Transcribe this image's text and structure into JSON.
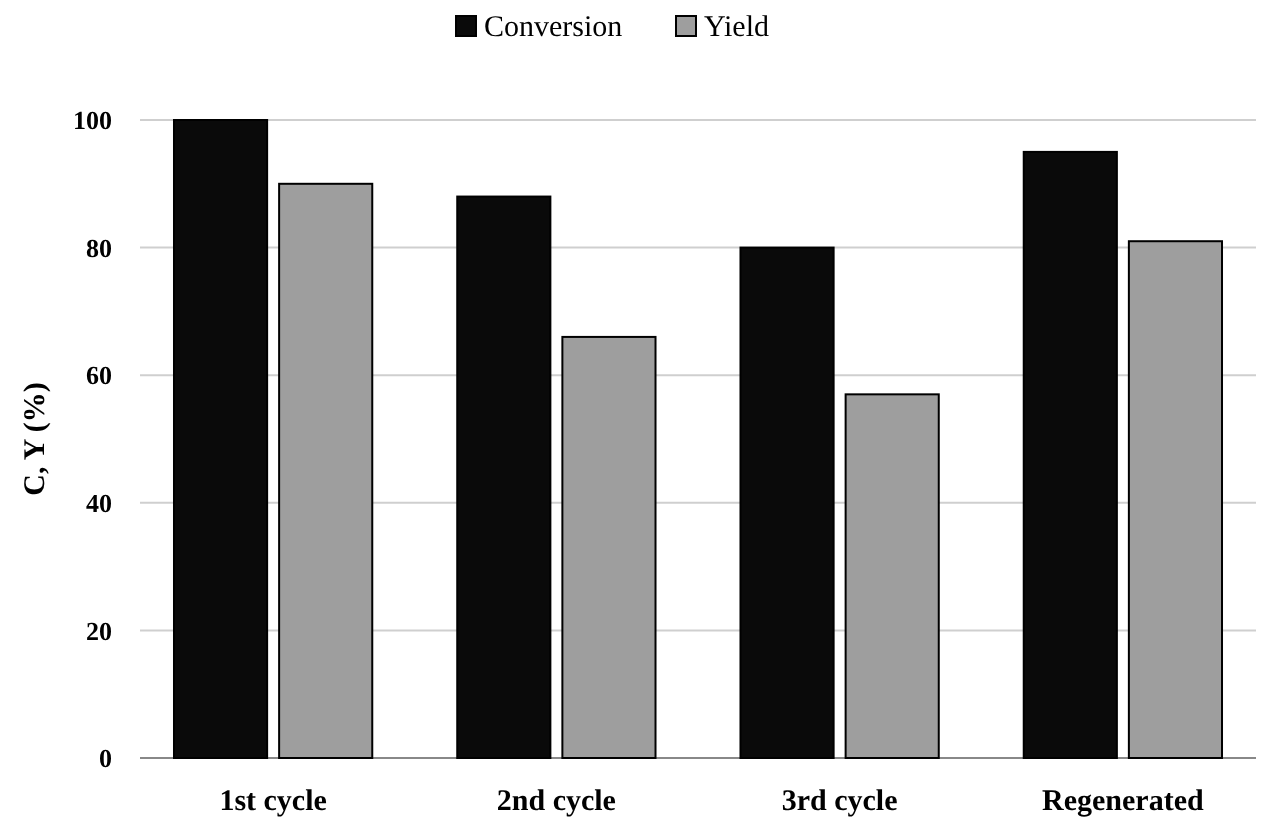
{
  "chart_data": {
    "type": "bar",
    "ylabel": "C, Y (%)",
    "categories": [
      "1st cycle",
      "2nd cycle",
      "3rd cycle",
      "Regenerated"
    ],
    "series": [
      {
        "name": "Conversion",
        "color": "#0a0a0a",
        "values": [
          100,
          88,
          80,
          95
        ]
      },
      {
        "name": "Yield",
        "color": "#9e9e9e",
        "values": [
          90,
          66,
          57,
          81
        ]
      }
    ],
    "ylim": [
      0,
      100
    ],
    "yticks": [
      0,
      20,
      40,
      60,
      80,
      100
    ],
    "grid": "y",
    "legend": "top"
  }
}
